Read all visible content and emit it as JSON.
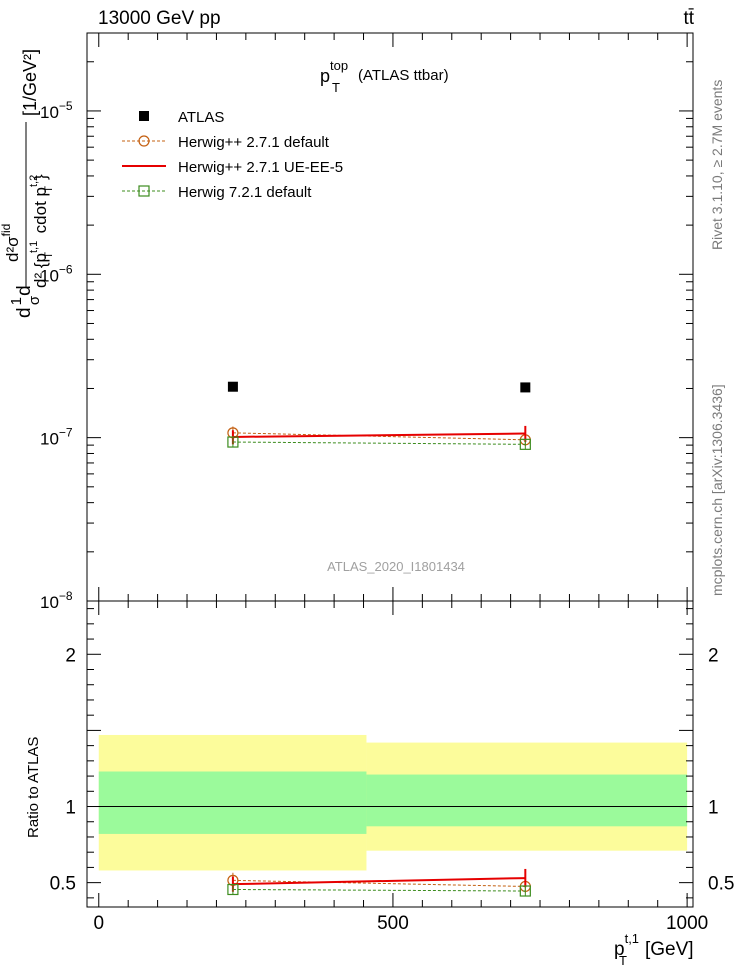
{
  "header": {
    "left": "13000 GeV pp",
    "right": "tt̄"
  },
  "side_labels": {
    "rivet": "Rivet 3.1.10, ≥ 2.7M events",
    "mcplots": "mcplots.cern.ch [arXiv:1306.3436]"
  },
  "watermark": "ATLAS_2020_I1801434",
  "colors": {
    "data": "#000000",
    "herwigpp_default": "#c46012",
    "herwigpp_ueee5": "#e60000",
    "herwig7": "#3c8c1e",
    "band_inner": "#9bfa9b",
    "band_outer": "#fcfc9b"
  },
  "chart_data": [
    {
      "type": "scatter",
      "panel": "main",
      "title": {
        "main": "p",
        "sub": "T",
        "sup": "top",
        "suffix": "(ATLAS ttbar)"
      },
      "ylabel": "d1/σd d²σ^fid / d²{p_T^{t,1} cdot p_T^{t,2}} [1/GeV²]",
      "ylabel_parts": {
        "frac1_num": "1",
        "frac1_den": "σ",
        "frac1_pre": "d",
        "frac1_post": "d",
        "frac2_num": "d²σ",
        "frac2_num_sup": "fid",
        "frac2_den": "d² {p",
        "frac2_den_sub1": "T",
        "frac2_den_sup1": "t,1",
        "frac2_den_mid": " cdot p",
        "frac2_den_sub2": "T",
        "frac2_den_sup2": "t,2",
        "frac2_den_close": "}",
        "unit": "[1/GeV²]"
      },
      "yscale": "log",
      "ylim": [
        1e-08,
        3e-05
      ],
      "yticks": [
        {
          "value": 1e-08,
          "base": "10",
          "exp": "−8"
        },
        {
          "value": 1e-07,
          "base": "10",
          "exp": "−7"
        },
        {
          "value": 1e-06,
          "base": "10",
          "exp": "−6"
        },
        {
          "value": 1e-05,
          "base": "10",
          "exp": "−5"
        }
      ],
      "xlim": [
        -20,
        1010
      ],
      "legend": {
        "placement": "top-left"
      },
      "series": [
        {
          "name": "ATLAS",
          "key": "data",
          "style": "square",
          "x": [
            228,
            725
          ],
          "y": [
            2.05e-07,
            2.03e-07
          ],
          "xerr": [
            [
              0,
              0
            ],
            [
              0,
              0
            ]
          ]
        },
        {
          "name": "Herwig++ 2.7.1 default",
          "key": "herwigpp_default",
          "style": "circle-dashed",
          "bins": [
            [
              0,
              455
            ],
            [
              455,
              1000
            ]
          ],
          "x": [
            228,
            725
          ],
          "y": [
            1.07e-07,
            9.7e-08
          ],
          "yerr": [
            1e-08,
            8e-09
          ]
        },
        {
          "name": "Herwig++ 2.7.1 UE-EE-5",
          "key": "herwigpp_ueee5",
          "style": "solid",
          "bins": [
            [
              0,
              455
            ],
            [
              455,
              1000
            ]
          ],
          "x": [
            228,
            725
          ],
          "y": [
            1.01e-07,
            1.06e-07
          ],
          "yerr": [
            1e-08,
            1.2e-08
          ]
        },
        {
          "name": "Herwig 7.2.1 default",
          "key": "herwig7",
          "style": "square-dashed",
          "bins": [
            [
              0,
              455
            ],
            [
              455,
              1000
            ]
          ],
          "x": [
            228,
            725
          ],
          "y": [
            9.4e-08,
            9.1e-08
          ],
          "yerr": [
            6e-09,
            6e-09
          ]
        }
      ]
    },
    {
      "type": "scatter",
      "panel": "ratio",
      "ylabel": "Ratio to ATLAS",
      "xlabel": {
        "main": "p",
        "sub": "T",
        "sup": "t,1",
        "unit": "[GeV]"
      },
      "ylim": [
        0.34,
        2.35
      ],
      "xlim": [
        -20,
        1010
      ],
      "xticks": [
        0,
        500,
        1000
      ],
      "yticks": [
        0.5,
        1,
        2
      ],
      "bands": [
        {
          "x": [
            0,
            455
          ],
          "inner": [
            0.82,
            1.23
          ],
          "outer": [
            0.58,
            1.47
          ]
        },
        {
          "x": [
            455,
            1000
          ],
          "inner": [
            0.87,
            1.21
          ],
          "outer": [
            0.71,
            1.42
          ]
        }
      ],
      "series": [
        {
          "name": "Herwig++ 2.7.1 default",
          "key": "herwigpp_default",
          "style": "circle-dashed",
          "x": [
            228,
            725
          ],
          "y": [
            0.515,
            0.475
          ],
          "yerr": [
            0.05,
            0.04
          ]
        },
        {
          "name": "Herwig++ 2.7.1 UE-EE-5",
          "key": "herwigpp_ueee5",
          "style": "solid",
          "x": [
            228,
            725
          ],
          "y": [
            0.49,
            0.53
          ],
          "yerr": [
            0.05,
            0.06
          ]
        },
        {
          "name": "Herwig 7.2.1 default",
          "key": "herwig7",
          "style": "square-dashed",
          "x": [
            228,
            725
          ],
          "y": [
            0.455,
            0.445
          ],
          "yerr": [
            0.03,
            0.03
          ]
        }
      ]
    }
  ]
}
